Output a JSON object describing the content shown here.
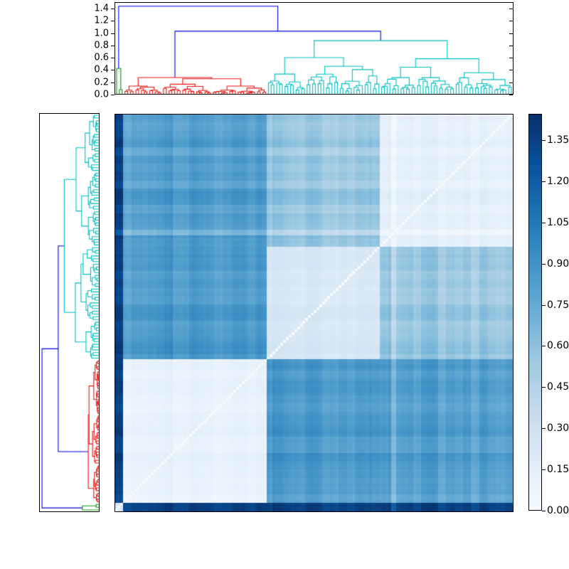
{
  "figure": {
    "kind": "hierarchical-clustering-heatmap",
    "background": "#ffffff",
    "frame_color": "#000000"
  },
  "chart_data": {
    "type": "heatmap",
    "title": "",
    "subtitle": "",
    "n_leaves": 144,
    "top_dendrogram": {
      "axis_tick_labels": [
        "1.4",
        "1.2",
        "1.0",
        "0.8",
        "0.6",
        "0.4",
        "0.2",
        "0.0"
      ],
      "axis_tick_values": [
        1.4,
        1.2,
        1.0,
        0.8,
        0.6,
        0.4,
        0.2,
        0.0
      ],
      "ylim": [
        0.0,
        1.504
      ],
      "leaf_order_left_to_right": [
        "green",
        "red",
        "teal1",
        "teal2"
      ]
    },
    "left_dendrogram": {
      "axis_tick_labels": [],
      "xlim": [
        0.0,
        1.504
      ],
      "leaf_order_top_to_bottom": [
        "teal2",
        "teal1",
        "red",
        "green"
      ]
    },
    "linkage": {
      "root_height": 1.448,
      "red_teal_link_height": 1.035,
      "green_root_height": 0.42,
      "green_inner_height": 0.07,
      "red_root_height": 0.27,
      "red_second_height": 0.25,
      "teal_root_height": 0.88,
      "teal_sub_heights": [
        0.6,
        0.58
      ],
      "color_threshold_rule": "links above 1.0 drawn blue"
    },
    "cluster_colors": {
      "blue": "#0000ee",
      "red": "#f01010",
      "green": "#0a930a",
      "cyan": "#00bfbf"
    },
    "block_distances": {
      "labels": [
        "green",
        "red",
        "teal1",
        "teal2"
      ],
      "sizes": [
        3,
        52,
        41,
        48
      ],
      "matrix": [
        [
          0.25,
          1.38,
          1.38,
          1.38
        ],
        [
          1.38,
          0.1,
          0.85,
          0.82
        ],
        [
          1.38,
          0.85,
          0.22,
          0.55
        ],
        [
          1.38,
          0.82,
          0.55,
          0.12
        ]
      ],
      "diagonal_value": 0.0,
      "stripe_leaves": [
        100,
        101
      ],
      "stripe_offset": -0.22
    },
    "colorbar": {
      "tick_labels": [
        "1.35",
        "1.20",
        "1.05",
        "0.90",
        "0.75",
        "0.60",
        "0.45",
        "0.30",
        "0.15",
        "0.00"
      ],
      "tick_values": [
        1.35,
        1.2,
        1.05,
        0.9,
        0.75,
        0.6,
        0.45,
        0.3,
        0.15,
        0.0
      ],
      "vmin": 0.0,
      "vmax": 1.4459,
      "colormap_name": "Blues",
      "colormap_stops": [
        [
          0.0,
          "#f7fbff"
        ],
        [
          0.125,
          "#deebf7"
        ],
        [
          0.25,
          "#c6dbef"
        ],
        [
          0.375,
          "#9ecae1"
        ],
        [
          0.5,
          "#6baed6"
        ],
        [
          0.625,
          "#4292c6"
        ],
        [
          0.75,
          "#2171b5"
        ],
        [
          0.875,
          "#08519c"
        ],
        [
          1.0,
          "#08306b"
        ]
      ],
      "orientation": "vertical",
      "ticks_side": "right"
    },
    "legend": null,
    "grid": false
  }
}
